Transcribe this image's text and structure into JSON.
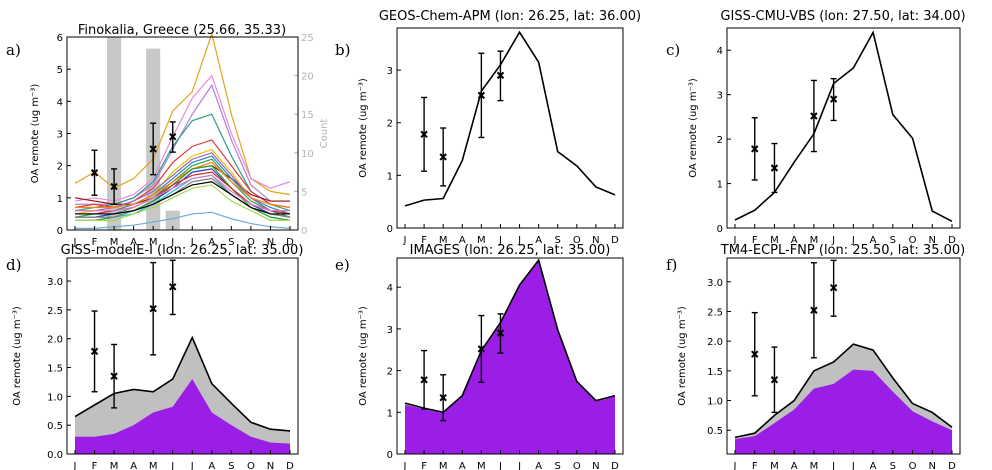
{
  "chart_data": [
    {
      "panel": "a)",
      "type": "line",
      "title": "Finokalia, Greece (25.66, 35.33)",
      "ylabel": "OA remote (ug m⁻³)",
      "ylim": [
        0,
        6
      ],
      "yticks": [
        0,
        1,
        2,
        3,
        4,
        5,
        6
      ],
      "y2label": "Count",
      "y2lim": [
        0,
        25
      ],
      "y2ticks": [
        0,
        5,
        10,
        15,
        20,
        25
      ],
      "y2color": "#b5b5b5",
      "categories": [
        "J",
        "F",
        "M",
        "A",
        "M",
        "J",
        "J",
        "A",
        "S",
        "O",
        "N",
        "D"
      ],
      "count_bars": {
        "color": "#c8c8c8",
        "values": [
          0,
          0,
          25,
          0,
          23.5,
          2.5,
          0,
          0,
          0,
          0,
          0,
          0
        ]
      },
      "observations": {
        "months": [
          2,
          3,
          5,
          6
        ],
        "mean": [
          1.78,
          1.35,
          2.52,
          2.9
        ],
        "low": [
          1.08,
          0.8,
          1.72,
          2.42
        ],
        "high": [
          2.48,
          1.9,
          3.32,
          3.36
        ]
      },
      "series": [
        {
          "color": "#e0a41d",
          "values": [
            1.45,
            1.8,
            1.3,
            1.6,
            2.2,
            3.7,
            4.3,
            6.1,
            3.6,
            1.6,
            1.2,
            1.1
          ]
        },
        {
          "color": "#ee88dd",
          "values": [
            0.9,
            1.0,
            0.9,
            1.1,
            1.6,
            2.9,
            4.1,
            4.8,
            3.0,
            1.6,
            1.3,
            1.5
          ]
        },
        {
          "color": "#b07fd6",
          "values": [
            0.8,
            0.8,
            0.8,
            1.0,
            1.4,
            2.5,
            3.6,
            4.5,
            2.8,
            1.4,
            0.9,
            0.9
          ]
        },
        {
          "color": "#2a9d8f",
          "values": [
            0.6,
            0.7,
            0.8,
            1.0,
            1.5,
            2.6,
            3.4,
            3.6,
            2.3,
            1.2,
            0.8,
            0.6
          ]
        },
        {
          "color": "#e23a3a",
          "values": [
            0.7,
            0.8,
            0.7,
            0.9,
            1.3,
            2.1,
            2.6,
            2.8,
            2.0,
            1.2,
            0.8,
            0.7
          ]
        },
        {
          "color": "#8b1a1a",
          "values": [
            1.0,
            0.9,
            0.8,
            0.8,
            1.0,
            1.4,
            1.9,
            2.0,
            1.6,
            1.1,
            0.9,
            0.9
          ]
        },
        {
          "color": "#f2c200",
          "values": [
            0.5,
            0.6,
            0.6,
            0.8,
            1.1,
            1.8,
            2.3,
            2.5,
            1.8,
            1.0,
            0.6,
            0.5
          ]
        },
        {
          "color": "#31a354",
          "values": [
            0.4,
            0.5,
            0.5,
            0.7,
            1.0,
            1.5,
            2.0,
            2.2,
            1.5,
            0.9,
            0.6,
            0.4
          ]
        },
        {
          "color": "#3182bd",
          "values": [
            0.5,
            0.5,
            0.6,
            0.8,
            1.1,
            1.6,
            2.1,
            2.3,
            1.6,
            1.0,
            0.7,
            0.5
          ]
        },
        {
          "color": "#1f3fbf",
          "values": [
            0.4,
            0.4,
            0.5,
            0.6,
            0.9,
            1.3,
            1.8,
            1.9,
            1.3,
            0.8,
            0.5,
            0.4
          ]
        },
        {
          "color": "#17becf",
          "values": [
            0.3,
            0.3,
            0.4,
            0.5,
            0.8,
            1.2,
            1.6,
            1.7,
            1.1,
            0.7,
            0.4,
            0.3
          ]
        },
        {
          "color": "#9467bd",
          "values": [
            0.6,
            0.6,
            0.7,
            0.9,
            1.2,
            1.7,
            2.2,
            2.4,
            1.7,
            1.0,
            0.6,
            0.6
          ]
        },
        {
          "color": "#ff7f0e",
          "values": [
            0.7,
            0.7,
            0.7,
            0.8,
            1.1,
            1.5,
            1.9,
            2.1,
            1.5,
            1.0,
            0.8,
            0.7
          ]
        },
        {
          "color": "#2ca02c",
          "values": [
            0.3,
            0.3,
            0.4,
            0.6,
            0.9,
            1.4,
            1.9,
            2.0,
            1.3,
            0.7,
            0.4,
            0.3
          ]
        },
        {
          "color": "#d62728",
          "values": [
            0.5,
            0.5,
            0.6,
            0.7,
            1.0,
            1.4,
            1.7,
            1.8,
            1.3,
            0.8,
            0.6,
            0.5
          ]
        },
        {
          "color": "#7f7f7f",
          "values": [
            0.4,
            0.4,
            0.4,
            0.6,
            0.8,
            1.1,
            1.5,
            1.6,
            1.1,
            0.7,
            0.5,
            0.4
          ]
        },
        {
          "color": "#000000",
          "values": [
            0.5,
            0.5,
            0.5,
            0.6,
            0.8,
            1.1,
            1.4,
            1.5,
            1.1,
            0.7,
            0.5,
            0.5
          ]
        },
        {
          "color": "#a6d854",
          "values": [
            0.3,
            0.3,
            0.3,
            0.5,
            0.7,
            1.0,
            1.3,
            1.4,
            0.9,
            0.6,
            0.3,
            0.3
          ]
        },
        {
          "color": "#e377c2",
          "values": [
            0.6,
            0.6,
            0.6,
            0.7,
            1.0,
            1.3,
            1.6,
            1.7,
            1.2,
            0.8,
            0.6,
            0.6
          ]
        },
        {
          "color": "#6baed6",
          "values": [
            0.05,
            0.05,
            0.1,
            0.15,
            0.25,
            0.35,
            0.5,
            0.55,
            0.35,
            0.2,
            0.1,
            0.05
          ]
        }
      ]
    },
    {
      "panel": "b)",
      "type": "line",
      "title": "GEOS-Chem-APM (lon: 26.25, lat: 36.00)",
      "ylabel": "OA remote (ug m⁻³)",
      "ylim": [
        0,
        3.8
      ],
      "yticks": [
        0,
        1,
        2,
        3
      ],
      "categories": [
        "J",
        "F",
        "M",
        "A",
        "M",
        "J",
        "J",
        "A",
        "S",
        "O",
        "N",
        "D"
      ],
      "observations": {
        "months": [
          2,
          3,
          5,
          6
        ],
        "mean": [
          1.78,
          1.35,
          2.52,
          2.9
        ],
        "low": [
          1.08,
          0.8,
          1.72,
          2.42
        ],
        "high": [
          2.48,
          1.9,
          3.32,
          3.36
        ]
      },
      "series": [
        {
          "color": "#000000",
          "values": [
            0.42,
            0.53,
            0.56,
            1.28,
            2.6,
            3.1,
            3.72,
            3.15,
            1.45,
            1.18,
            0.78,
            0.63
          ]
        }
      ]
    },
    {
      "panel": "c)",
      "type": "line",
      "title": "GISS-CMU-VBS (lon: 27.50, lat: 34.00)",
      "ylabel": "OA remote (ug m⁻³)",
      "ylim": [
        0,
        4.5
      ],
      "yticks": [
        0,
        1,
        2,
        3,
        4
      ],
      "categories": [
        "J",
        "F",
        "M",
        "A",
        "M",
        "J",
        "J",
        "A",
        "S",
        "O",
        "N",
        "D"
      ],
      "observations": {
        "months": [
          2,
          3,
          5,
          6
        ],
        "mean": [
          1.78,
          1.35,
          2.52,
          2.9
        ],
        "low": [
          1.08,
          0.8,
          1.72,
          2.42
        ],
        "high": [
          2.48,
          1.9,
          3.32,
          3.36
        ]
      },
      "series": [
        {
          "color": "#000000",
          "values": [
            0.18,
            0.4,
            0.8,
            1.48,
            2.12,
            3.25,
            3.6,
            4.4,
            2.55,
            2.02,
            0.38,
            0.15
          ]
        }
      ]
    },
    {
      "panel": "d)",
      "type": "area",
      "title": "GISS-modelE-I (lon: 26.25, lat: 35.00)",
      "ylabel": "OA remote (ug m⁻³)",
      "ylim": [
        0,
        3.4
      ],
      "yticks": [
        0.0,
        0.5,
        1.0,
        1.5,
        2.0,
        2.5,
        3.0
      ],
      "categories": [
        "J",
        "F",
        "M",
        "A",
        "M",
        "J",
        "J",
        "A",
        "S",
        "O",
        "N",
        "D"
      ],
      "observations": {
        "months": [
          2,
          3,
          5,
          6
        ],
        "mean": [
          1.78,
          1.35,
          2.52,
          2.9
        ],
        "low": [
          1.08,
          0.8,
          1.72,
          2.42
        ],
        "high": [
          2.48,
          1.9,
          3.32,
          3.36
        ]
      },
      "lower_area": {
        "color": "#9a1ee6",
        "values": [
          0.3,
          0.3,
          0.35,
          0.5,
          0.72,
          0.82,
          1.3,
          0.72,
          0.5,
          0.3,
          0.2,
          0.18
        ]
      },
      "total": {
        "color": "#c0c0c0",
        "values": [
          0.65,
          0.85,
          1.05,
          1.12,
          1.08,
          1.3,
          2.02,
          1.22,
          0.88,
          0.55,
          0.43,
          0.4
        ]
      }
    },
    {
      "panel": "e)",
      "type": "area",
      "title": "IMAGES (lon: 26.25, lat: 35.00)",
      "ylabel": "OA remote (ug m⁻³)",
      "ylim": [
        0,
        4.7
      ],
      "yticks": [
        0,
        1,
        2,
        3,
        4
      ],
      "categories": [
        "J",
        "F",
        "M",
        "A",
        "M",
        "J",
        "J",
        "A",
        "S",
        "O",
        "N",
        "D"
      ],
      "observations": {
        "months": [
          2,
          3,
          5,
          6
        ],
        "mean": [
          1.78,
          1.35,
          2.52,
          2.9
        ],
        "low": [
          1.08,
          0.8,
          1.72,
          2.42
        ],
        "high": [
          2.48,
          1.9,
          3.32,
          3.36
        ]
      },
      "lower_area": {
        "color": "#9a1ee6",
        "values": [
          1.18,
          1.08,
          0.98,
          1.38,
          2.45,
          3.12,
          4.02,
          4.62,
          2.95,
          1.72,
          1.26,
          1.38
        ]
      },
      "total": {
        "color": "#c0c0c0",
        "values": [
          1.22,
          1.1,
          1.0,
          1.4,
          2.48,
          3.15,
          4.05,
          4.65,
          2.98,
          1.74,
          1.28,
          1.4
        ]
      }
    },
    {
      "panel": "f)",
      "type": "area",
      "title": "TM4-ECPL-FNP (lon: 25.50, lat: 35.00)",
      "ylabel": "OA remote (ug m⁻³)",
      "ylim": [
        0.1,
        3.4
      ],
      "yticks": [
        0.5,
        1.0,
        1.5,
        2.0,
        2.5,
        3.0
      ],
      "categories": [
        "J",
        "F",
        "M",
        "A",
        "M",
        "J",
        "J",
        "A",
        "S",
        "O",
        "N",
        "D"
      ],
      "observations": {
        "months": [
          2,
          3,
          5,
          6
        ],
        "mean": [
          1.78,
          1.35,
          2.52,
          2.9
        ],
        "low": [
          1.08,
          0.8,
          1.72,
          2.42
        ],
        "high": [
          2.48,
          1.9,
          3.32,
          3.36
        ]
      },
      "lower_area": {
        "color": "#9a1ee6",
        "values": [
          0.35,
          0.4,
          0.62,
          0.85,
          1.2,
          1.28,
          1.52,
          1.5,
          1.15,
          0.82,
          0.65,
          0.5
        ]
      },
      "total": {
        "color": "#c0c0c0",
        "values": [
          0.38,
          0.45,
          0.75,
          1.0,
          1.5,
          1.65,
          1.95,
          1.85,
          1.38,
          0.95,
          0.8,
          0.55
        ]
      }
    }
  ]
}
